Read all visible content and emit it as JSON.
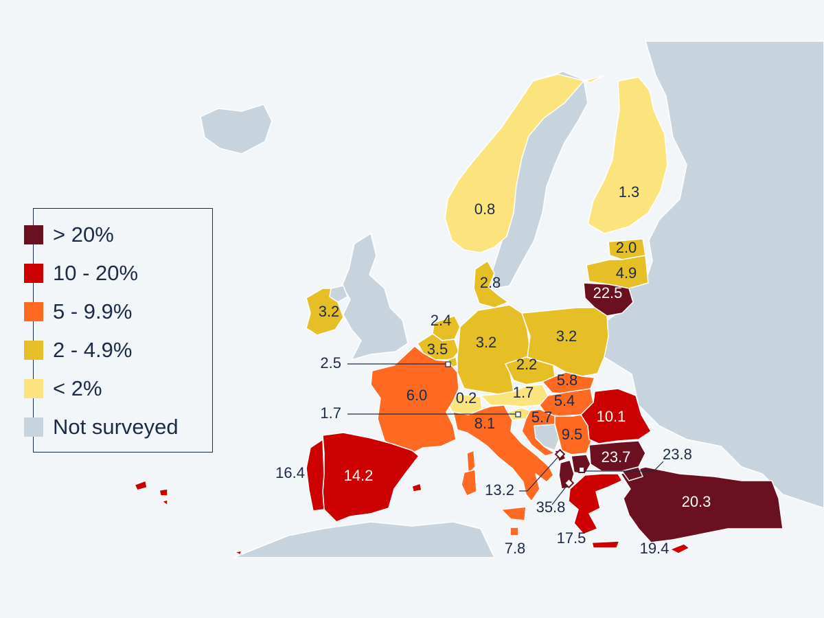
{
  "colors": {
    "background": "#f3f6f9",
    "not_surveyed": "#c8d4dd",
    "border": "#ffffff",
    "text_dark": "#1c2b45",
    "text_light": "#ffffff"
  },
  "legend": {
    "items": [
      {
        "label": "> 20%",
        "color": "#6b1020"
      },
      {
        "label": "10 - 20%",
        "color": "#cc0000"
      },
      {
        "label": "5 - 9.9%",
        "color": "#ff6a22"
      },
      {
        "label": "2 - 4.9%",
        "color": "#e6bf26"
      },
      {
        "label": "< 2%",
        "color": "#fbe47e"
      },
      {
        "label": "Not surveyed",
        "color": "#c8d4dd"
      }
    ]
  },
  "map": {
    "values": {
      "norway": "0.8",
      "finland": "1.3",
      "estonia": "2.0",
      "latvia": "4.9",
      "lithuania": "22.5",
      "denmark": "2.8",
      "ireland": "3.2",
      "netherlands": "2.4",
      "belgium": "3.5",
      "luxembourg": "2.5",
      "germany": "3.2",
      "poland": "3.2",
      "czechia": "2.2",
      "slovakia": "5.8",
      "hungary": "5.4",
      "austria": "1.7",
      "switzerland": "0.2",
      "slovenia": "1.7",
      "croatia": "5.7",
      "france": "6.0",
      "italy": "8.1",
      "serbia": "9.5",
      "romania": "10.1",
      "bulgaria": "23.7",
      "north_macedonia": "23.8",
      "montenegro": "13.2",
      "albania": "35.8",
      "spain": "14.2",
      "portugal": "16.4",
      "malta": "7.8",
      "greece": "17.5",
      "cyprus": "19.4",
      "turkey": "20.3"
    }
  }
}
